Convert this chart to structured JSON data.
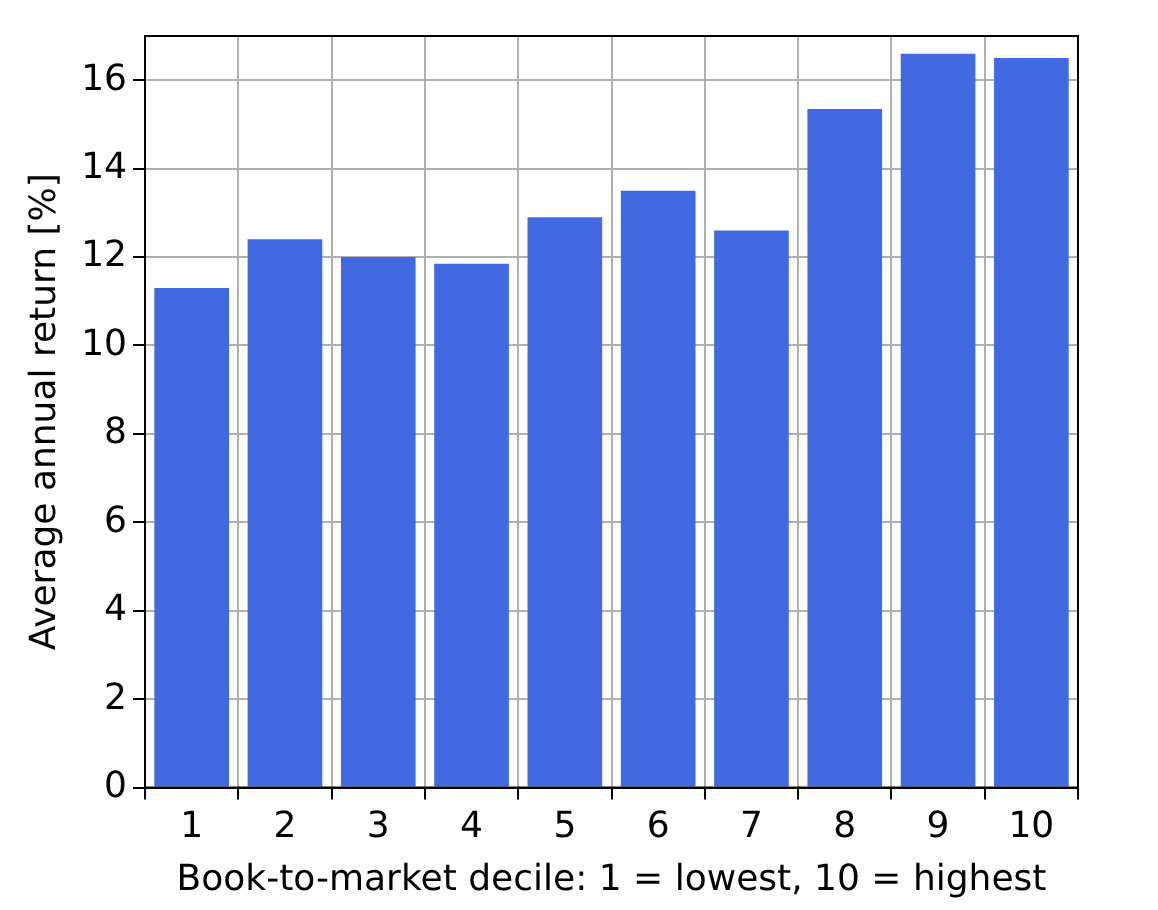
{
  "chart_data": {
    "type": "bar",
    "xlabel": "Book-to-market decile: 1 = lowest, 10 = highest",
    "ylabel": "Average annual return [%]",
    "categories": [
      "1",
      "2",
      "3",
      "4",
      "5",
      "6",
      "7",
      "8",
      "9",
      "10"
    ],
    "values": [
      11.3,
      12.4,
      12.0,
      11.85,
      12.9,
      13.5,
      12.6,
      15.35,
      16.6,
      16.5
    ],
    "color": "#4169e1",
    "ylim": [
      0,
      17
    ],
    "yticks": [
      0,
      2,
      4,
      6,
      8,
      10,
      12,
      14,
      16
    ],
    "grid": true,
    "legend": false
  }
}
